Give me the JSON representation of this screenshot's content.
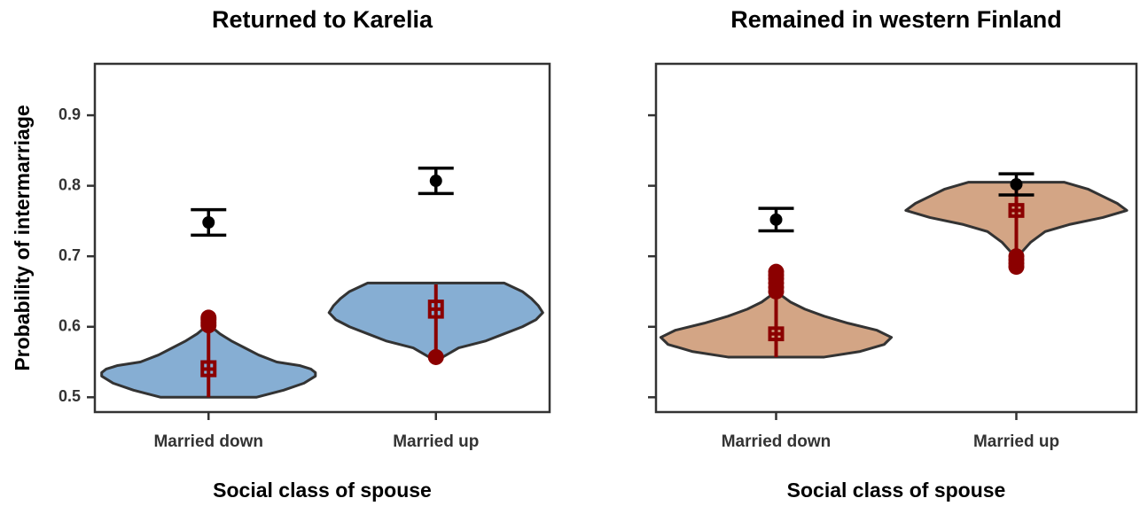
{
  "chart_data": [
    {
      "type": "violin",
      "title": "Returned to Karelia",
      "xlabel": "Social class of spouse",
      "ylabel": "Probability of intermarriage",
      "categories": [
        "Married down",
        "Married up"
      ],
      "color": "#86aed3",
      "box_color": "#8b0000",
      "estimate_color": "#000000",
      "ylim": [
        0.479,
        0.973
      ],
      "yticks": [
        0.5,
        0.6,
        0.7,
        0.8,
        0.9
      ],
      "tick_labels": true,
      "groups": [
        {
          "violin": {
            "y": [
              0.5,
              0.51,
              0.52,
              0.53,
              0.535,
              0.54,
              0.545,
              0.55,
              0.56,
              0.57,
              0.58,
              0.59,
              0.598
            ],
            "width": [
              0.21,
              0.33,
              0.42,
              0.47,
              0.47,
              0.45,
              0.4,
              0.3,
              0.22,
              0.16,
              0.1,
              0.05,
              0.02
            ]
          },
          "box": {
            "whisker_low": 0.5,
            "q1": 0.531,
            "median": 0.54,
            "q3": 0.55,
            "whisker_high": 0.598
          },
          "outliers": [
            0.602,
            0.606,
            0.61,
            0.613
          ],
          "estimate": 0.748,
          "error": 0.018
        },
        {
          "violin": {
            "y": [
              0.557,
              0.57,
              0.58,
              0.59,
              0.6,
              0.61,
              0.62,
              0.63,
              0.64,
              0.65,
              0.662
            ],
            "width": [
              0.03,
              0.1,
              0.22,
              0.3,
              0.38,
              0.44,
              0.47,
              0.45,
              0.42,
              0.38,
              0.3
            ]
          },
          "box": {
            "whisker_low": 0.56,
            "q1": 0.614,
            "median": 0.625,
            "q3": 0.636,
            "whisker_high": 0.66
          },
          "outliers": [
            0.557
          ],
          "estimate": 0.807,
          "error": 0.018
        }
      ]
    },
    {
      "type": "violin",
      "title": "Remained in western Finland",
      "xlabel": "Social class of spouse",
      "categories": [
        "Married down",
        "Married up"
      ],
      "color": "#d3a585",
      "box_color": "#8b0000",
      "estimate_color": "#000000",
      "ylim": [
        0.479,
        0.973
      ],
      "yticks": [
        0.5,
        0.6,
        0.7,
        0.8,
        0.9
      ],
      "tick_labels": false,
      "groups": [
        {
          "violin": {
            "y": [
              0.557,
              0.565,
              0.575,
              0.585,
              0.595,
              0.605,
              0.615,
              0.625,
              0.635,
              0.645
            ],
            "width": [
              0.2,
              0.35,
              0.45,
              0.48,
              0.42,
              0.3,
              0.2,
              0.12,
              0.06,
              0.02
            ]
          },
          "box": {
            "whisker_low": 0.557,
            "q1": 0.582,
            "median": 0.59,
            "q3": 0.598,
            "whisker_high": 0.645
          },
          "outliers": [
            0.65,
            0.656,
            0.662,
            0.668,
            0.673,
            0.678
          ],
          "estimate": 0.752,
          "error": 0.016
        },
        {
          "violin": {
            "y": [
              0.705,
              0.72,
              0.735,
              0.745,
              0.755,
              0.765,
              0.775,
              0.785,
              0.795,
              0.805
            ],
            "width": [
              0.02,
              0.06,
              0.12,
              0.22,
              0.36,
              0.46,
              0.42,
              0.36,
              0.3,
              0.2
            ]
          },
          "box": {
            "whisker_low": 0.705,
            "q1": 0.757,
            "median": 0.765,
            "q3": 0.773,
            "whisker_high": 0.8
          },
          "outliers": [
            0.685,
            0.69,
            0.695,
            0.7
          ],
          "estimate": 0.802,
          "error": 0.015
        }
      ]
    }
  ]
}
